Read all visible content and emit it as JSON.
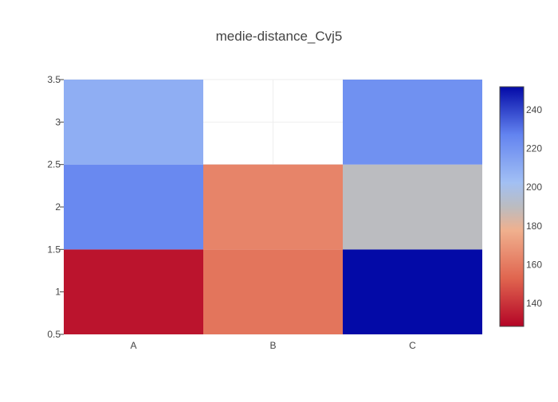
{
  "chart_data": {
    "type": "heatmap",
    "title": "medie-distance_Cvj5",
    "xlabel": "",
    "ylabel": "",
    "x_categories": [
      "A",
      "B",
      "C"
    ],
    "y_values": [
      1,
      2,
      3
    ],
    "z": [
      [
        132,
        158,
        253
      ],
      [
        225,
        163,
        190
      ],
      [
        210,
        null,
        222
      ]
    ],
    "xlim": [
      -0.5,
      2.5
    ],
    "ylim": [
      0.5,
      3.5
    ],
    "y_ticks": [
      0.5,
      1,
      1.5,
      2,
      2.5,
      3,
      3.5
    ],
    "y_tick_labels": [
      "0.5",
      "1",
      "1.5",
      "2",
      "2.5",
      "3",
      "3.5"
    ],
    "colorscale": {
      "name": "coolwarm",
      "min": 128,
      "max": 252,
      "stops": [
        [
          0.0,
          "#b40426"
        ],
        [
          0.2,
          "#e0654f"
        ],
        [
          0.4,
          "#f0b08e"
        ],
        [
          0.5,
          "#bbbcc0"
        ],
        [
          0.6,
          "#a2c0f4"
        ],
        [
          0.8,
          "#6384f0"
        ],
        [
          1.0,
          "#030aa7"
        ]
      ],
      "ticks": [
        140,
        160,
        180,
        200,
        220,
        240
      ],
      "tick_labels": [
        "140",
        "160",
        "180",
        "200",
        "220",
        "240"
      ]
    },
    "grid": true,
    "colorbar_position": "right"
  }
}
